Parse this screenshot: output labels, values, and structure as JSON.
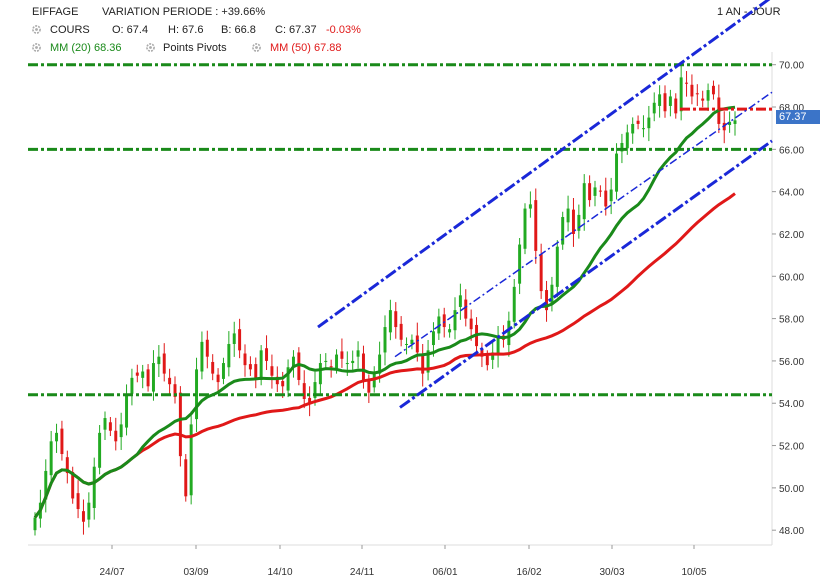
{
  "header": {
    "title": "EIFFAGE",
    "variation": "VARIATION PERIODE : +39.66%",
    "period": "1 AN - JOUR",
    "cours_label": "COURS",
    "o": "O: 67.4",
    "h": "H: 67.6",
    "b": "B: 66.8",
    "c_label": "C: 67.37",
    "c_change": "-0.03%",
    "mm20": "MM (20)",
    "mm20_value": "68.36",
    "pivots": "Points Pivots",
    "mm50": "MM (50)",
    "mm50_value": "67.88"
  },
  "colors": {
    "up": "#22aa22",
    "down": "#e01818",
    "mm20": "#1a8a1a",
    "mm50": "#e01818",
    "channel": "#1a28d8",
    "support": "#1a8a1a",
    "last_price_bg": "#3b74c8"
  },
  "chart_data": {
    "type": "candlestick",
    "y_ticks": [
      "48.00",
      "50.00",
      "52.00",
      "54.00",
      "56.00",
      "58.00",
      "60.00",
      "62.00",
      "64.00",
      "66.00",
      "68.00",
      "70.00"
    ],
    "x_ticks": [
      "24/07",
      "03/09",
      "14/10",
      "24/11",
      "06/01",
      "16/02",
      "30/03",
      "10/05"
    ],
    "last_price": "67.37",
    "ylim": [
      47.3,
      70.6
    ],
    "horizontal_levels": [
      {
        "value": 70.0,
        "color": "green"
      },
      {
        "value": 66.0,
        "color": "green"
      },
      {
        "value": 54.4,
        "color": "green"
      },
      {
        "value": 67.9,
        "color": "red"
      }
    ],
    "closes": [
      48.6,
      49.3,
      50.8,
      52.2,
      52.6,
      51.6,
      50.7,
      49.5,
      49.0,
      48.4,
      49.3,
      51.0,
      52.6,
      53.3,
      52.7,
      52.2,
      53.0,
      54.4,
      55.2,
      55.3,
      55.5,
      54.8,
      55.9,
      56.2,
      55.4,
      54.9,
      54.3,
      51.5,
      49.6,
      53.0,
      55.6,
      56.9,
      56.2,
      55.4,
      55.0,
      55.9,
      56.8,
      57.3,
      56.5,
      55.8,
      55.6,
      55.2,
      56.5,
      56.0,
      55.3,
      54.9,
      54.8,
      55.7,
      56.2,
      55.1,
      54.2,
      54.0,
      55.0,
      55.9,
      56.0,
      55.7,
      56.3,
      56.1,
      55.9,
      56.0,
      56.5,
      55.0,
      54.5,
      55.5,
      56.3,
      57.6,
      58.4,
      57.6,
      57.0,
      56.8,
      57.0,
      56.4,
      55.4,
      56.5,
      57.4,
      58.1,
      57.6,
      57.5,
      58.4,
      59.1,
      58.0,
      57.5,
      56.7,
      56.2,
      55.8,
      56.4,
      57.1,
      57.0,
      57.9,
      59.5,
      61.5,
      63.2,
      63.4,
      61.2,
      59.3,
      58.4,
      59.6,
      61.4,
      62.8,
      63.2,
      62.0,
      62.9,
      64.4,
      63.6,
      64.2,
      64.0,
      63.3,
      64.1,
      65.8,
      66.3,
      66.8,
      67.2,
      67.2,
      67.0,
      67.5,
      68.2,
      68.6,
      67.8,
      68.5,
      67.7,
      69.4,
      69.1,
      68.5,
      68.6,
      68.3,
      68.8,
      68.6,
      67.2,
      66.9,
      67.3,
      67.37
    ]
  }
}
